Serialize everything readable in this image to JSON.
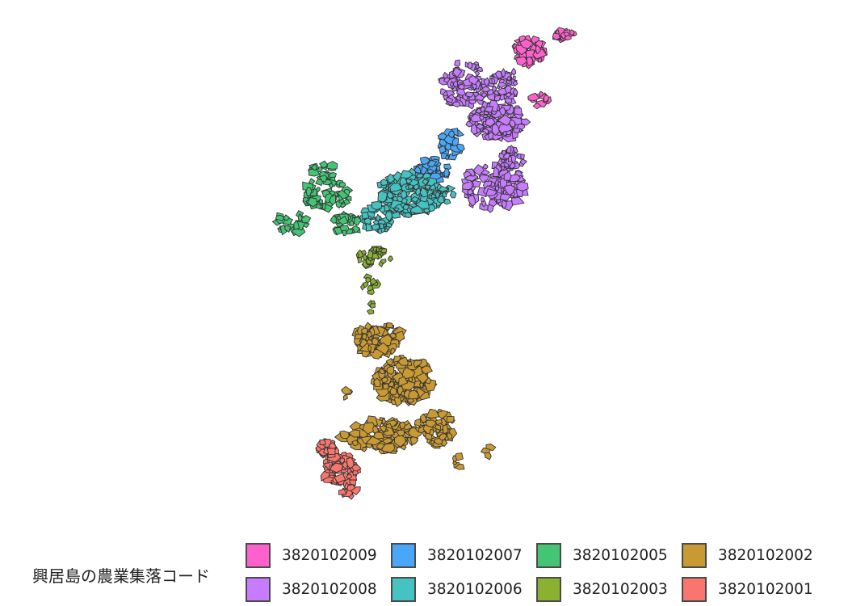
{
  "legend": {
    "title": "興居島の農業集落コード",
    "items": [
      {
        "code": "3820102009",
        "color": "#FF61CC"
      },
      {
        "code": "3820102007",
        "color": "#4AA6F7"
      },
      {
        "code": "3820102005",
        "color": "#43C574"
      },
      {
        "code": "3820102002",
        "color": "#C99A33"
      },
      {
        "code": "3820102008",
        "color": "#C77CFF"
      },
      {
        "code": "3820102006",
        "color": "#45C2C2"
      },
      {
        "code": "3820102003",
        "color": "#8AB230"
      },
      {
        "code": "3820102001",
        "color": "#F8766D"
      }
    ]
  },
  "map": {
    "outline_color": "#333333",
    "background": "#ffffff"
  }
}
